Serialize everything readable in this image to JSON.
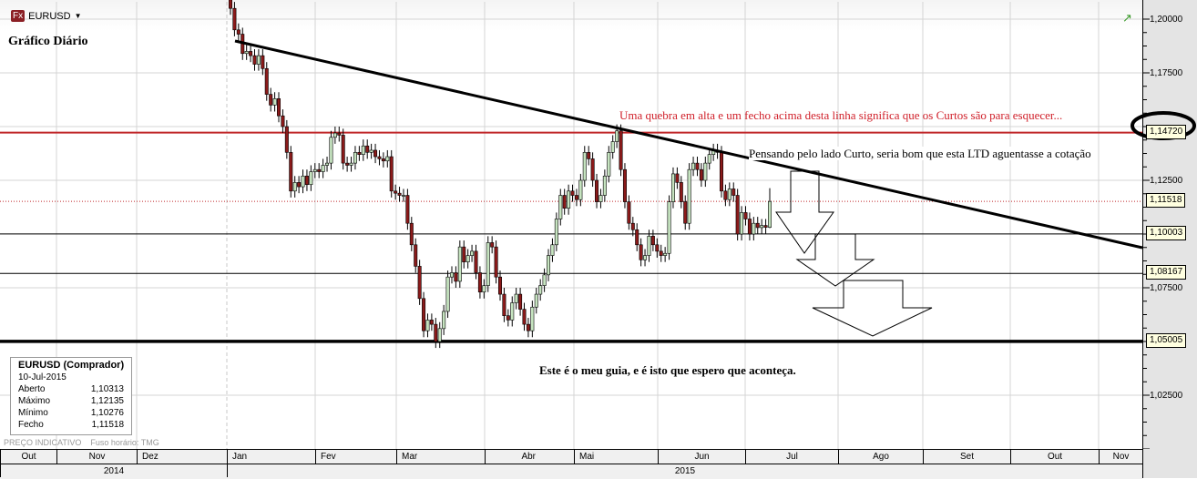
{
  "header": {
    "symbol": "EURUSD",
    "fx_badge": "Fx",
    "chart_title": "Gráfico Diário"
  },
  "info_box": {
    "title": "EURUSD (Comprador)",
    "date": "10-Jul-2015",
    "rows": [
      {
        "label": "Aberto",
        "value": "1,10313"
      },
      {
        "label": "Máximo",
        "value": "1,12135"
      },
      {
        "label": "Mínimo",
        "value": "1,10276"
      },
      {
        "label": "Fecho",
        "value": "1,11518"
      }
    ]
  },
  "footer": {
    "indicative": "PREÇO INDICATIVO",
    "timezone": "Fuso horário: TMG"
  },
  "annotations": {
    "red_note": "Uma quebra em alta e um fecho acima desta linha significa que os Curtos são para esquecer...",
    "short_note": "Pensando pelo lado Curto, seria bom que esta LTD aguentasse a cotação",
    "guide_note": "Este é o meu guia, e é isto que espero que aconteça."
  },
  "colors": {
    "bull": "#c6e4c0",
    "bear": "#8b1a1a",
    "resistance": "#c0282a",
    "trendline": "#000000"
  },
  "chart_data": {
    "type": "candlestick",
    "ylim": [
      1.0,
      1.21
    ],
    "y_ticks": [
      "1,20000",
      "1,17500",
      "1,12500",
      "1,07500",
      "1,02500"
    ],
    "y_tick_values": [
      1.2,
      1.175,
      1.125,
      1.075,
      1.025
    ],
    "price_levels": [
      {
        "value": 1.1472,
        "label": "1,14720",
        "style": "red",
        "circled": true
      },
      {
        "value": 1.11518,
        "label": "1,11518",
        "style": "red-dotted"
      },
      {
        "value": 1.10003,
        "label": "1,10003",
        "style": "thin"
      },
      {
        "value": 1.08167,
        "label": "1,08167",
        "style": "thin"
      },
      {
        "value": 1.05005,
        "label": "1,05005",
        "style": "thick"
      }
    ],
    "trendline": {
      "from": {
        "date": "2015-01-05",
        "value": 1.188
      },
      "to": {
        "date": "2015-11-20",
        "value": 1.091
      }
    },
    "months_2014": [
      "Out",
      "Nov",
      "Dez"
    ],
    "months_2015": [
      "Jan",
      "Fev",
      "Mar",
      "Abr",
      "Mai",
      "Jun",
      "Jul",
      "Ago",
      "Set",
      "Out",
      "Nov"
    ],
    "years": [
      "2014",
      "2015"
    ],
    "last_candle": {
      "date": "10-Jul-2015",
      "open": 1.10313,
      "high": 1.12135,
      "low": 1.10276,
      "close": 1.11518
    },
    "daily_close_from_2015_01_02": [
      1.205,
      1.195,
      1.193,
      1.184,
      1.185,
      1.183,
      1.179,
      1.183,
      1.177,
      1.165,
      1.16,
      1.163,
      1.155,
      1.15,
      1.138,
      1.12,
      1.124,
      1.122,
      1.127,
      1.123,
      1.129,
      1.13,
      1.129,
      1.132,
      1.133,
      1.145,
      1.147,
      1.146,
      1.133,
      1.132,
      1.133,
      1.138,
      1.137,
      1.141,
      1.138,
      1.139,
      1.136,
      1.135,
      1.134,
      1.136,
      1.12,
      1.119,
      1.118,
      1.118,
      1.105,
      1.095,
      1.085,
      1.07,
      1.055,
      1.06,
      1.058,
      1.05,
      1.056,
      1.064,
      1.08,
      1.082,
      1.078,
      1.094,
      1.087,
      1.09,
      1.092,
      1.082,
      1.073,
      1.076,
      1.096,
      1.094,
      1.08,
      1.072,
      1.062,
      1.06,
      1.068,
      1.072,
      1.065,
      1.058,
      1.055,
      1.066,
      1.072,
      1.076,
      1.081,
      1.09,
      1.095,
      1.107,
      1.118,
      1.112,
      1.12,
      1.118,
      1.116,
      1.125,
      1.138,
      1.135,
      1.125,
      1.115,
      1.118,
      1.127,
      1.138,
      1.143,
      1.148,
      1.13,
      1.115,
      1.105,
      1.102,
      1.095,
      1.088,
      1.09,
      1.099,
      1.095,
      1.092,
      1.09,
      1.091,
      1.115,
      1.128,
      1.124,
      1.115,
      1.105,
      1.13,
      1.133,
      1.13,
      1.125,
      1.133,
      1.137,
      1.139,
      1.138,
      1.12,
      1.116,
      1.121,
      1.118,
      1.1,
      1.11,
      1.107,
      1.1,
      1.105,
      1.103,
      1.104,
      1.10313,
      1.11518
    ]
  }
}
